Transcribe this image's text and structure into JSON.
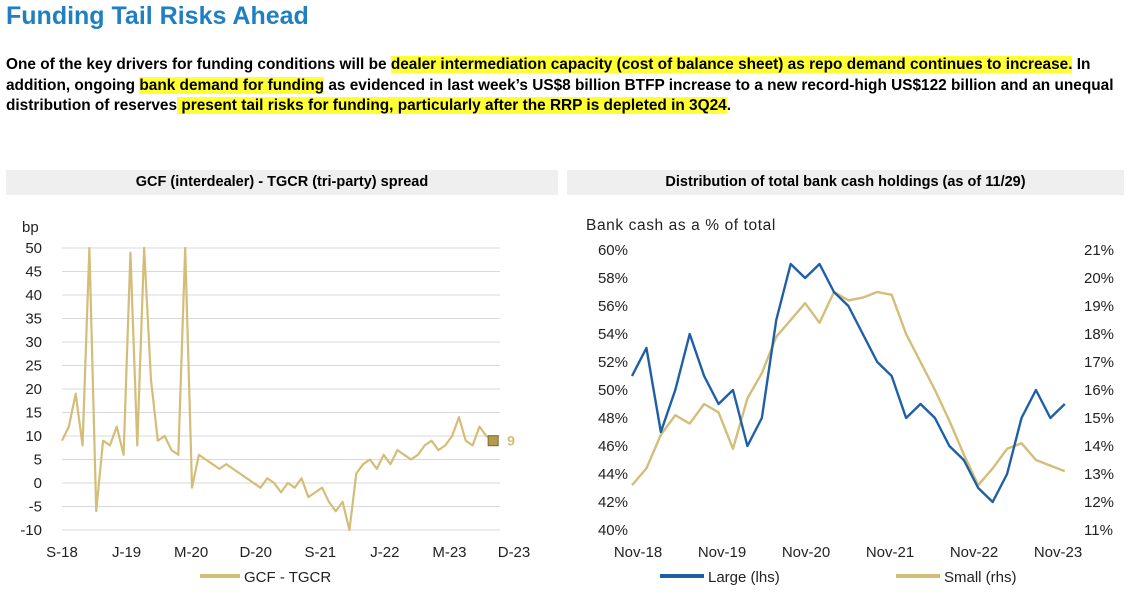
{
  "page": {
    "title": "Funding Tail Risks Ahead",
    "paragraph": {
      "p1": "One of the key drivers for funding conditions will be ",
      "h1": "dealer intermediation capacity (cost of balance sheet) as repo demand continues to increase.",
      "p2": " In addition, ongoing ",
      "h2": "bank demand for funding",
      "p3": " as evidenced in last week’s US$8 billion BTFP increase to a new record-high US$122 billion and an unequal distribution of reserves",
      "h3": " present tail risks for funding, particularly after the RRP is depleted in 3Q24",
      "p4": "."
    },
    "colors": {
      "title": "#1f7fc1",
      "highlight": "#ffff33",
      "gold": "#d4bd79",
      "navy": "#1f5fa6",
      "panel_header": "#efefef"
    }
  },
  "chart_data": [
    {
      "type": "line",
      "title": "GCF (interdealer) - TGCR (tri-party) spread",
      "ylabel": "bp",
      "ylim": [
        -10,
        50
      ],
      "yticks": [
        -10,
        -5,
        0,
        5,
        10,
        15,
        20,
        25,
        30,
        35,
        40,
        45,
        50
      ],
      "xticks": [
        "S-18",
        "J-19",
        "M-20",
        "D-20",
        "S-21",
        "J-22",
        "M-23",
        "D-23"
      ],
      "xrange": [
        "2018-09",
        "2024-01"
      ],
      "grid": "horizontal",
      "legend": "bottom-center",
      "end_label": "9",
      "series": [
        {
          "name": "GCF - TGCR",
          "x": [
            "2018-09",
            "2018-10",
            "2018-11",
            "2018-12",
            "2019-01",
            "2019-02",
            "2019-03",
            "2019-04",
            "2019-05",
            "2019-06",
            "2019-07",
            "2019-08",
            "2019-09",
            "2019-10",
            "2019-11",
            "2019-12",
            "2020-01",
            "2020-02",
            "2020-03",
            "2020-04",
            "2020-05",
            "2020-06",
            "2020-07",
            "2020-08",
            "2020-09",
            "2020-10",
            "2020-11",
            "2020-12",
            "2021-01",
            "2021-02",
            "2021-03",
            "2021-04",
            "2021-05",
            "2021-06",
            "2021-07",
            "2021-08",
            "2021-09",
            "2021-10",
            "2021-11",
            "2021-12",
            "2022-01",
            "2022-02",
            "2022-03",
            "2022-04",
            "2022-05",
            "2022-06",
            "2022-07",
            "2022-08",
            "2022-09",
            "2022-10",
            "2022-11",
            "2022-12",
            "2023-01",
            "2023-02",
            "2023-03",
            "2023-04",
            "2023-05",
            "2023-06",
            "2023-07",
            "2023-08",
            "2023-09",
            "2023-10",
            "2023-11",
            "2023-12"
          ],
          "values": [
            9,
            12,
            19,
            8,
            50,
            -6,
            9,
            8,
            12,
            6,
            49,
            8,
            50,
            22,
            9,
            10,
            7,
            6,
            50,
            -1,
            6,
            5,
            4,
            3,
            4,
            3,
            2,
            1,
            0,
            -1,
            1,
            0,
            -2,
            0,
            -1,
            1,
            -3,
            -2,
            -1,
            -4,
            -6,
            -4,
            -10,
            2,
            4,
            5,
            3,
            6,
            4,
            7,
            6,
            5,
            6,
            8,
            9,
            7,
            8,
            10,
            14,
            9,
            8,
            12,
            10,
            9
          ]
        }
      ]
    },
    {
      "type": "line",
      "title": "Distribution of total bank cash holdings (as of 11/29)",
      "ylabel": "Bank cash as a % of total",
      "ylim": [
        40,
        60
      ],
      "yticks": [
        "40%",
        "42%",
        "44%",
        "46%",
        "48%",
        "50%",
        "52%",
        "54%",
        "56%",
        "58%",
        "60%"
      ],
      "y2lim": [
        11,
        21
      ],
      "y2ticks": [
        "11%",
        "12%",
        "13%",
        "14%",
        "15%",
        "16%",
        "17%",
        "18%",
        "19%",
        "20%",
        "21%"
      ],
      "xticks": [
        "Nov-18",
        "Nov-19",
        "Nov-20",
        "Nov-21",
        "Nov-22",
        "Nov-23"
      ],
      "xrange": [
        "2018-11",
        "2023-12"
      ],
      "grid": "none",
      "legend": "bottom-center",
      "series": [
        {
          "name": "Large (lhs)",
          "axis": "left",
          "x": [
            "2018-11",
            "2019-01",
            "2019-03",
            "2019-05",
            "2019-07",
            "2019-09",
            "2019-11",
            "2020-01",
            "2020-03",
            "2020-05",
            "2020-07",
            "2020-09",
            "2020-11",
            "2021-01",
            "2021-03",
            "2021-05",
            "2021-07",
            "2021-09",
            "2021-11",
            "2022-01",
            "2022-03",
            "2022-05",
            "2022-07",
            "2022-09",
            "2022-11",
            "2023-01",
            "2023-03",
            "2023-05",
            "2023-07",
            "2023-09",
            "2023-11"
          ],
          "values": [
            51,
            53,
            47,
            50,
            54,
            51,
            49,
            50,
            46,
            48,
            55,
            59,
            58,
            59,
            57,
            56,
            54,
            52,
            51,
            48,
            49,
            48,
            46,
            45,
            43,
            42,
            44,
            48,
            50,
            48,
            49
          ]
        },
        {
          "name": "Small (rhs)",
          "axis": "right",
          "x": [
            "2018-11",
            "2019-01",
            "2019-03",
            "2019-05",
            "2019-07",
            "2019-09",
            "2019-11",
            "2020-01",
            "2020-03",
            "2020-05",
            "2020-07",
            "2020-09",
            "2020-11",
            "2021-01",
            "2021-03",
            "2021-05",
            "2021-07",
            "2021-09",
            "2021-11",
            "2022-01",
            "2022-03",
            "2022-05",
            "2022-07",
            "2022-09",
            "2022-11",
            "2023-01",
            "2023-03",
            "2023-05",
            "2023-07",
            "2023-09",
            "2023-11"
          ],
          "values": [
            12.6,
            13.2,
            14.4,
            15.1,
            14.8,
            15.5,
            15.2,
            13.9,
            15.7,
            16.6,
            17.9,
            18.5,
            19.1,
            18.4,
            19.5,
            19.2,
            19.3,
            19.5,
            19.4,
            18.0,
            17.0,
            16.0,
            14.9,
            13.7,
            12.6,
            13.2,
            13.9,
            14.1,
            13.5,
            13.3,
            13.1
          ]
        }
      ]
    }
  ]
}
